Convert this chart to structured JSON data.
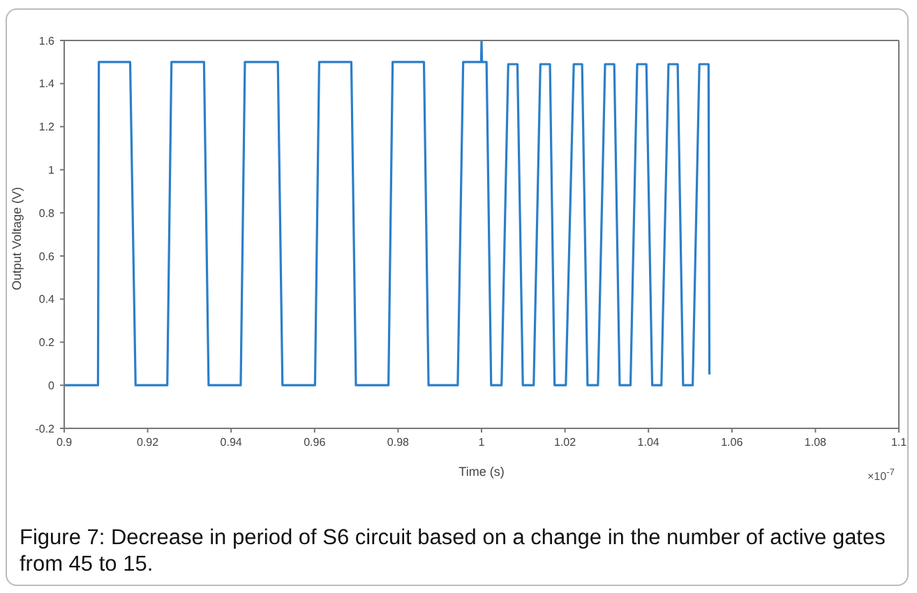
{
  "chart_data": {
    "type": "line",
    "xlabel": "Time (s)",
    "ylabel": "Output Voltage (V)",
    "x": [
      0.9,
      0.9081,
      0.9083,
      0.9158,
      0.9171,
      0.9247,
      0.9257,
      0.9335,
      0.9346,
      0.9423,
      0.9433,
      0.9512,
      0.9523,
      0.9601,
      0.9611,
      0.9688,
      0.9699,
      0.9777,
      0.9787,
      0.9862,
      0.9873,
      0.9943,
      0.9956,
      0.9999,
      1.0,
      1.0001,
      1.0012,
      1.0023,
      1.0048,
      1.0064,
      1.0086,
      1.0099,
      1.0125,
      1.0141,
      1.0164,
      1.0175,
      1.0202,
      1.0221,
      1.0241,
      1.0254,
      1.0279,
      1.0296,
      1.0318,
      1.0331,
      1.0357,
      1.0373,
      1.0395,
      1.0409,
      1.0431,
      1.0448,
      1.047,
      1.0483,
      1.0506,
      1.0522,
      1.0544,
      1.0546
    ],
    "series": [
      {
        "color": "#2a7fc9",
        "values": [
          0,
          0,
          1.5,
          1.5,
          0,
          0,
          1.5,
          1.5,
          0,
          0,
          1.5,
          1.5,
          0,
          0,
          1.5,
          1.5,
          0,
          0,
          1.5,
          1.5,
          0,
          0,
          1.5,
          1.5,
          1.6,
          1.5,
          1.5,
          0,
          0,
          1.49,
          1.49,
          0,
          0,
          1.49,
          1.49,
          0,
          0,
          1.49,
          1.49,
          0,
          0,
          1.49,
          1.49,
          0,
          0,
          1.49,
          1.49,
          0,
          0,
          1.49,
          1.49,
          0,
          0,
          1.49,
          1.49,
          0.05
        ]
      }
    ],
    "xlim": [
      0.9,
      1.1
    ],
    "xticks": [
      {
        "value": 0.9,
        "label": "0.9"
      },
      0.92,
      0.94,
      0.96,
      0.98,
      1,
      1.02,
      1.04,
      1.06,
      1.08,
      {
        "value": 1.1,
        "label": "1.1"
      }
    ],
    "ylim": [
      -0.2,
      1.6
    ],
    "yticks": [
      -0.2,
      0,
      0.2,
      0.4,
      0.6,
      0.8,
      1,
      1.2,
      1.4,
      1.6
    ],
    "grid": false,
    "legend": false,
    "marker": "none",
    "line_style": "solid",
    "annotations": [
      "×10$^{-7}$",
      "Figure 7: Decrease in period of S6 circuit based on a change in the number of active gates from 45 to 15."
    ]
  }
}
